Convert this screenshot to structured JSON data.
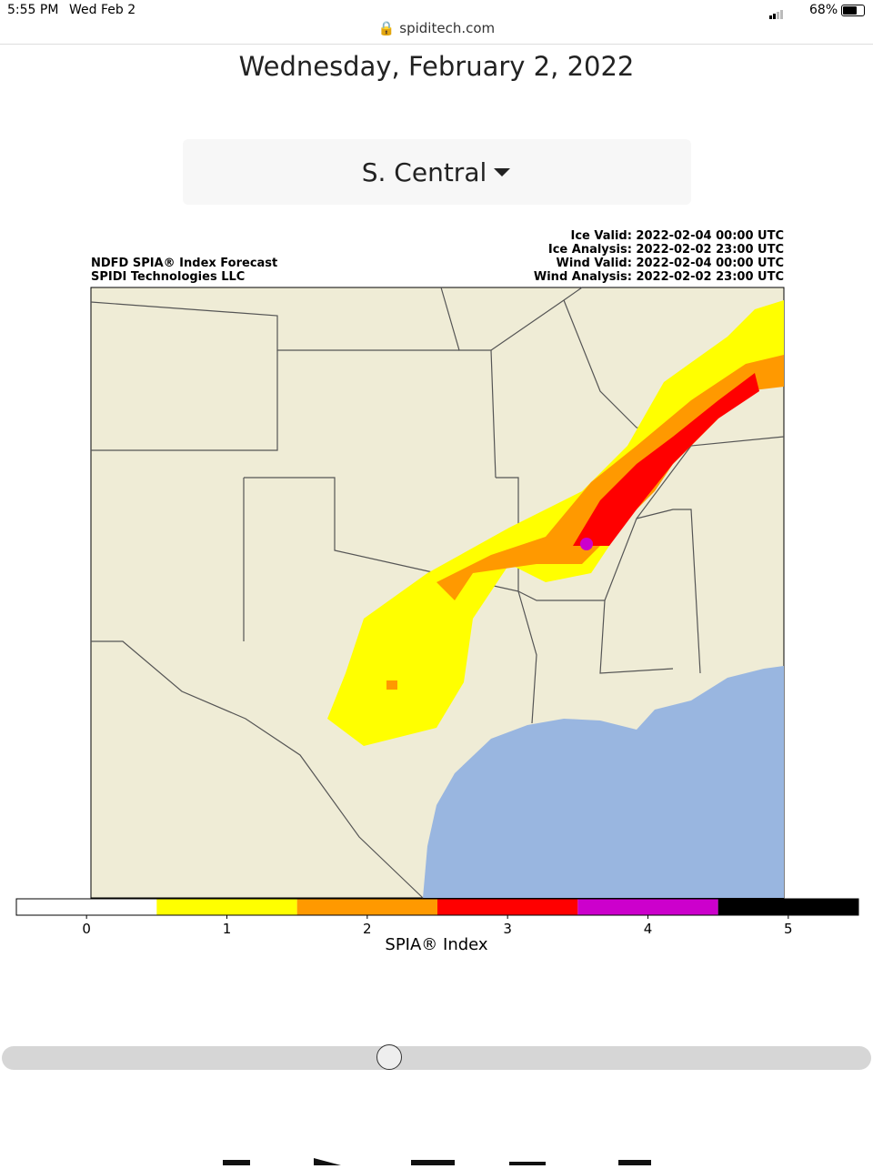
{
  "status_bar": {
    "time": "5:55 PM",
    "date": "Wed Feb 2",
    "battery": "68%"
  },
  "browser": {
    "url": "spiditech.com"
  },
  "page": {
    "date_heading": "Wednesday, February 2, 2022",
    "region_dropdown": "S. Central"
  },
  "map": {
    "title": "NDFD SPIA® Index Forecast",
    "source": "SPIDI Technologies LLC",
    "valid_lines": [
      "Ice Valid: 2022-02-04 00:00 UTC",
      "Ice Analysis: 2022-02-02 23:00 UTC",
      "Wind Valid: 2022-02-04 00:00 UTC",
      "Wind Analysis: 2022-02-02 23:00 UTC"
    ],
    "colorbar": {
      "label": "SPIA® Index",
      "ticks": [
        0,
        1,
        2,
        3,
        4,
        5
      ],
      "colors": [
        "#ffffff",
        "#ffff00",
        "#ff9900",
        "#ff0000",
        "#cc00cc",
        "#000000"
      ]
    }
  }
}
